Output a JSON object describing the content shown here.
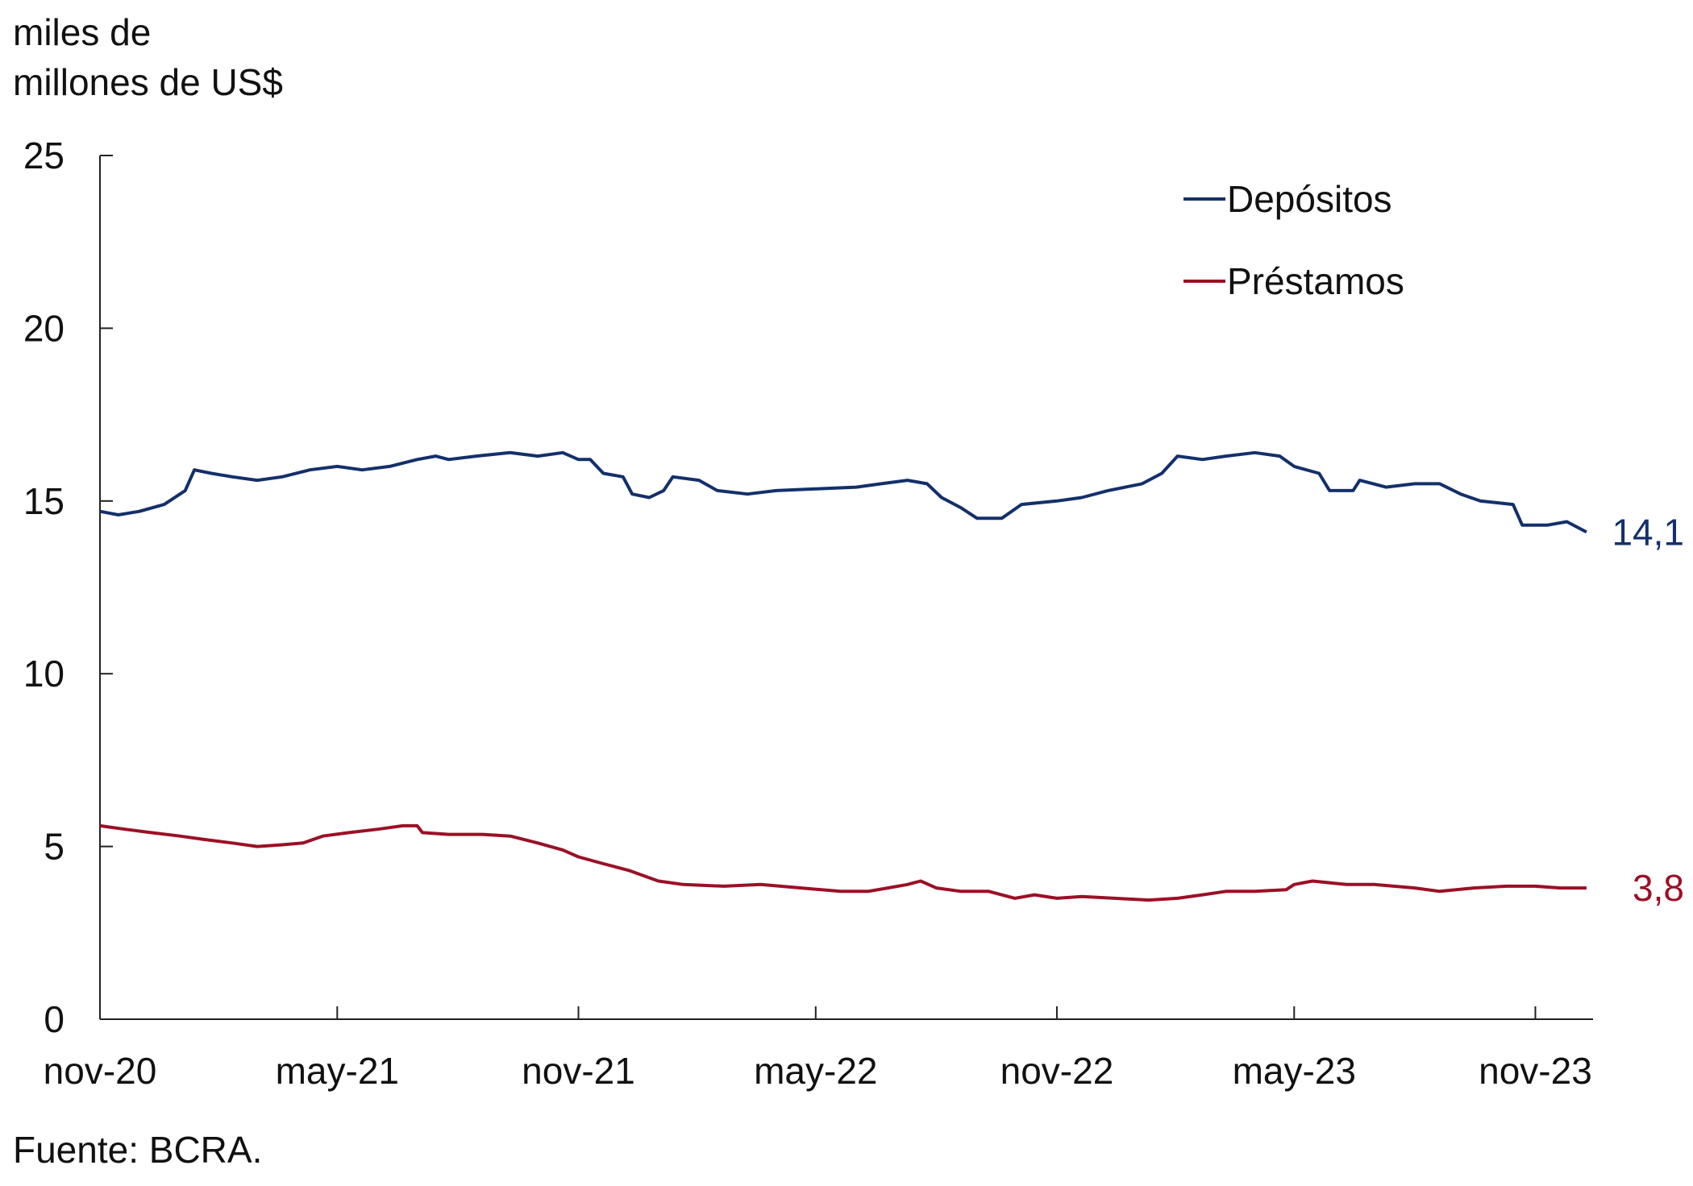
{
  "y_unit_line1": "miles de",
  "y_unit_line2": "millones de US$",
  "source": "Fuente: BCRA.",
  "chart_data": {
    "type": "line",
    "ylim": [
      0,
      25
    ],
    "y_ticks": [
      "0",
      "5",
      "10",
      "15",
      "20",
      "25"
    ],
    "x_ticks": [
      "nov-20",
      "may-21",
      "nov-21",
      "may-22",
      "nov-22",
      "may-23",
      "nov-23"
    ],
    "x_tick_dates": [
      "2020-11-01",
      "2021-05-01",
      "2021-11-01",
      "2022-05-01",
      "2022-11-01",
      "2023-05-01",
      "2023-11-01"
    ],
    "x_range": [
      "2020-11-01",
      "2023-12-15"
    ],
    "legend_position": "top-right",
    "grid": false,
    "series": [
      {
        "name": "Depósitos",
        "color": "#14306b",
        "end_label": "14,1",
        "points": [
          [
            "2020-11-01",
            14.7
          ],
          [
            "2020-11-15",
            14.6
          ],
          [
            "2020-12-01",
            14.7
          ],
          [
            "2020-12-20",
            14.9
          ],
          [
            "2021-01-05",
            15.3
          ],
          [
            "2021-01-12",
            15.9
          ],
          [
            "2021-01-25",
            15.8
          ],
          [
            "2021-02-10",
            15.7
          ],
          [
            "2021-03-01",
            15.6
          ],
          [
            "2021-03-20",
            15.7
          ],
          [
            "2021-04-10",
            15.9
          ],
          [
            "2021-05-01",
            16.0
          ],
          [
            "2021-05-20",
            15.9
          ],
          [
            "2021-06-10",
            16.0
          ],
          [
            "2021-07-01",
            16.2
          ],
          [
            "2021-07-15",
            16.3
          ],
          [
            "2021-07-25",
            16.2
          ],
          [
            "2021-08-15",
            16.3
          ],
          [
            "2021-09-10",
            16.4
          ],
          [
            "2021-10-01",
            16.3
          ],
          [
            "2021-10-20",
            16.4
          ],
          [
            "2021-11-01",
            16.2
          ],
          [
            "2021-11-10",
            16.2
          ],
          [
            "2021-11-20",
            15.8
          ],
          [
            "2021-12-05",
            15.7
          ],
          [
            "2021-12-12",
            15.2
          ],
          [
            "2021-12-25",
            15.1
          ],
          [
            "2022-01-05",
            15.3
          ],
          [
            "2022-01-12",
            15.7
          ],
          [
            "2022-02-01",
            15.6
          ],
          [
            "2022-02-15",
            15.3
          ],
          [
            "2022-03-10",
            15.2
          ],
          [
            "2022-04-01",
            15.3
          ],
          [
            "2022-05-01",
            15.35
          ],
          [
            "2022-06-01",
            15.4
          ],
          [
            "2022-06-20",
            15.5
          ],
          [
            "2022-07-10",
            15.6
          ],
          [
            "2022-07-25",
            15.5
          ],
          [
            "2022-08-05",
            15.1
          ],
          [
            "2022-08-20",
            14.8
          ],
          [
            "2022-09-01",
            14.5
          ],
          [
            "2022-09-20",
            14.5
          ],
          [
            "2022-10-05",
            14.9
          ],
          [
            "2022-11-01",
            15.0
          ],
          [
            "2022-11-20",
            15.1
          ],
          [
            "2022-12-10",
            15.3
          ],
          [
            "2023-01-05",
            15.5
          ],
          [
            "2023-01-20",
            15.8
          ],
          [
            "2023-02-01",
            16.3
          ],
          [
            "2023-02-20",
            16.2
          ],
          [
            "2023-03-10",
            16.3
          ],
          [
            "2023-04-01",
            16.4
          ],
          [
            "2023-04-20",
            16.3
          ],
          [
            "2023-05-01",
            16.0
          ],
          [
            "2023-05-20",
            15.8
          ],
          [
            "2023-05-28",
            15.3
          ],
          [
            "2023-06-15",
            15.3
          ],
          [
            "2023-06-20",
            15.6
          ],
          [
            "2023-07-10",
            15.4
          ],
          [
            "2023-08-01",
            15.5
          ],
          [
            "2023-08-20",
            15.5
          ],
          [
            "2023-09-05",
            15.2
          ],
          [
            "2023-09-20",
            15.0
          ],
          [
            "2023-10-15",
            14.9
          ],
          [
            "2023-10-22",
            14.3
          ],
          [
            "2023-11-10",
            14.3
          ],
          [
            "2023-11-25",
            14.4
          ],
          [
            "2023-12-10",
            14.1
          ]
        ]
      },
      {
        "name": "Préstamos",
        "color": "#9b1026",
        "end_label": "3,8",
        "points": [
          [
            "2020-11-01",
            5.6
          ],
          [
            "2020-11-20",
            5.5
          ],
          [
            "2020-12-10",
            5.4
          ],
          [
            "2021-01-01",
            5.3
          ],
          [
            "2021-01-20",
            5.2
          ],
          [
            "2021-02-10",
            5.1
          ],
          [
            "2021-03-01",
            5.0
          ],
          [
            "2021-03-20",
            5.05
          ],
          [
            "2021-04-05",
            5.1
          ],
          [
            "2021-04-20",
            5.3
          ],
          [
            "2021-05-10",
            5.4
          ],
          [
            "2021-06-01",
            5.5
          ],
          [
            "2021-06-20",
            5.6
          ],
          [
            "2021-07-01",
            5.6
          ],
          [
            "2021-07-05",
            5.4
          ],
          [
            "2021-07-25",
            5.35
          ],
          [
            "2021-08-20",
            5.35
          ],
          [
            "2021-09-10",
            5.3
          ],
          [
            "2021-10-01",
            5.1
          ],
          [
            "2021-10-20",
            4.9
          ],
          [
            "2021-11-01",
            4.7
          ],
          [
            "2021-11-20",
            4.5
          ],
          [
            "2021-12-10",
            4.3
          ],
          [
            "2022-01-01",
            4.0
          ],
          [
            "2022-01-20",
            3.9
          ],
          [
            "2022-02-20",
            3.85
          ],
          [
            "2022-03-20",
            3.9
          ],
          [
            "2022-04-20",
            3.8
          ],
          [
            "2022-05-20",
            3.7
          ],
          [
            "2022-06-10",
            3.7
          ],
          [
            "2022-06-25",
            3.8
          ],
          [
            "2022-07-10",
            3.9
          ],
          [
            "2022-07-20",
            4.0
          ],
          [
            "2022-08-01",
            3.8
          ],
          [
            "2022-08-20",
            3.7
          ],
          [
            "2022-09-10",
            3.7
          ],
          [
            "2022-09-30",
            3.5
          ],
          [
            "2022-10-15",
            3.6
          ],
          [
            "2022-11-01",
            3.5
          ],
          [
            "2022-11-20",
            3.55
          ],
          [
            "2022-12-15",
            3.5
          ],
          [
            "2023-01-10",
            3.45
          ],
          [
            "2023-02-01",
            3.5
          ],
          [
            "2023-02-20",
            3.6
          ],
          [
            "2023-03-10",
            3.7
          ],
          [
            "2023-04-01",
            3.7
          ],
          [
            "2023-04-25",
            3.75
          ],
          [
            "2023-05-01",
            3.9
          ],
          [
            "2023-05-15",
            4.0
          ],
          [
            "2023-06-10",
            3.9
          ],
          [
            "2023-07-01",
            3.9
          ],
          [
            "2023-08-01",
            3.8
          ],
          [
            "2023-08-20",
            3.7
          ],
          [
            "2023-09-15",
            3.8
          ],
          [
            "2023-10-10",
            3.85
          ],
          [
            "2023-11-01",
            3.85
          ],
          [
            "2023-11-20",
            3.8
          ],
          [
            "2023-12-10",
            3.8
          ]
        ]
      }
    ]
  }
}
